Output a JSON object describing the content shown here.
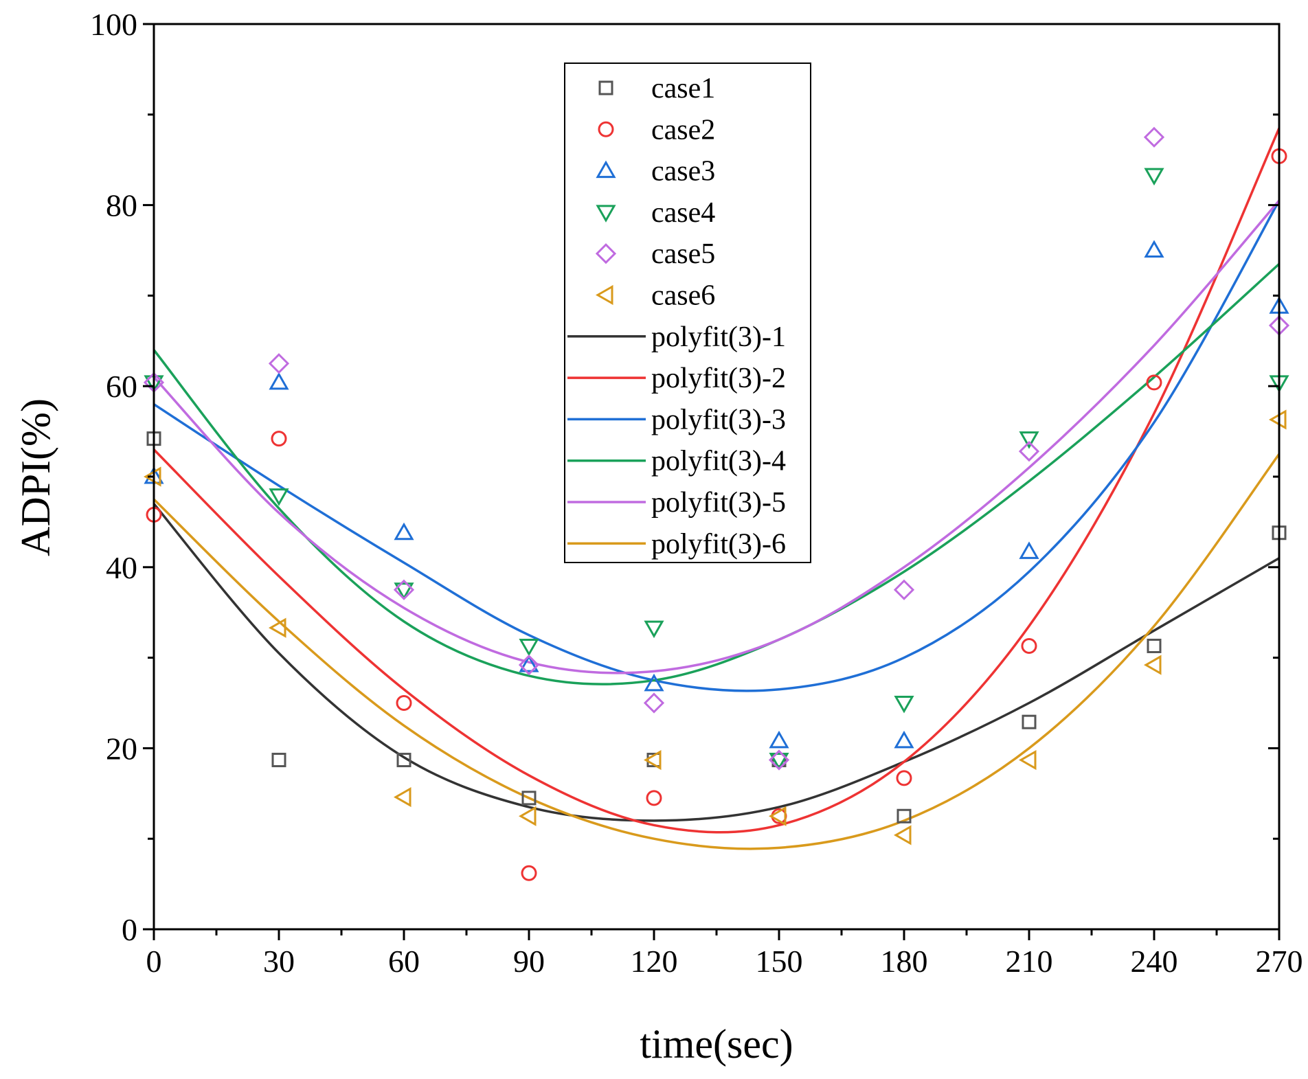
{
  "chart_data": {
    "type": "scatter",
    "title": "",
    "xlabel": "time(sec)",
    "ylabel": "ADPI(%)",
    "xlim": [
      0,
      270
    ],
    "ylim": [
      0,
      100
    ],
    "x_ticks": [
      0,
      30,
      60,
      90,
      120,
      150,
      180,
      210,
      240,
      270
    ],
    "x_tick_labels": [
      "0",
      "30",
      "60",
      "90",
      "120",
      "150",
      "180",
      "210",
      "240",
      "270"
    ],
    "y_ticks": [
      0,
      20,
      40,
      60,
      80,
      100
    ],
    "y_tick_labels": [
      "0",
      "20",
      "40",
      "60",
      "80",
      "100"
    ],
    "grid": false,
    "legend_position": "top-center",
    "x": [
      0,
      30,
      60,
      90,
      120,
      150,
      180,
      210,
      240,
      270
    ],
    "series": [
      {
        "name": "case1",
        "marker": "square",
        "color": "#555555",
        "values": [
          54.2,
          18.7,
          18.7,
          14.5,
          18.7,
          18.7,
          12.5,
          22.9,
          31.3,
          43.8
        ]
      },
      {
        "name": "case2",
        "marker": "circle",
        "color": "#ee3333",
        "values": [
          45.8,
          54.2,
          25.0,
          6.2,
          14.5,
          12.5,
          16.7,
          31.3,
          60.4,
          85.4
        ]
      },
      {
        "name": "case3",
        "marker": "triangle-up",
        "color": "#1f6fd6",
        "values": [
          50.0,
          60.4,
          43.8,
          29.2,
          27.1,
          20.8,
          20.8,
          41.7,
          75.0,
          68.8
        ]
      },
      {
        "name": "case4",
        "marker": "triangle-down",
        "color": "#1aa15a",
        "values": [
          60.4,
          47.9,
          37.5,
          31.3,
          33.3,
          18.7,
          25.0,
          54.2,
          83.3,
          60.4
        ]
      },
      {
        "name": "case5",
        "marker": "diamond",
        "color": "#c06be0",
        "values": [
          60.4,
          62.5,
          37.5,
          29.2,
          25.0,
          18.7,
          37.5,
          52.8,
          87.5,
          66.7
        ]
      },
      {
        "name": "case6",
        "marker": "triangle-left",
        "color": "#d99a1c",
        "values": [
          50.0,
          33.3,
          14.6,
          12.5,
          18.7,
          12.5,
          10.4,
          18.7,
          29.2,
          56.3
        ]
      }
    ],
    "fits": [
      {
        "name": "polyfit(3)-1",
        "color": "#333333",
        "x": [
          0,
          30,
          60,
          90,
          120,
          150,
          180,
          210,
          240,
          270
        ],
        "values": [
          47.0,
          30.5,
          19.0,
          13.5,
          12.0,
          13.5,
          18.5,
          25.0,
          33.0,
          41.0
        ]
      },
      {
        "name": "polyfit(3)-2",
        "color": "#ee3333",
        "x": [
          0,
          30,
          60,
          90,
          120,
          150,
          180,
          210,
          240,
          270
        ],
        "values": [
          53.0,
          39.0,
          26.5,
          17.0,
          11.5,
          11.5,
          18.5,
          33.5,
          57.0,
          88.5
        ]
      },
      {
        "name": "polyfit(3)-3",
        "color": "#1f6fd6",
        "x": [
          0,
          30,
          60,
          90,
          120,
          150,
          180,
          210,
          240,
          270
        ],
        "values": [
          58.0,
          49.0,
          40.5,
          32.5,
          27.5,
          26.5,
          30.0,
          39.5,
          56.0,
          80.5
        ]
      },
      {
        "name": "polyfit(3)-4",
        "color": "#1aa15a",
        "x": [
          0,
          30,
          60,
          90,
          120,
          150,
          180,
          210,
          240,
          270
        ],
        "values": [
          64.0,
          46.5,
          34.0,
          28.0,
          27.5,
          32.0,
          39.5,
          49.5,
          61.0,
          73.5
        ]
      },
      {
        "name": "polyfit(3)-5",
        "color": "#c06be0",
        "x": [
          0,
          30,
          60,
          90,
          120,
          150,
          180,
          210,
          240,
          270
        ],
        "values": [
          61.0,
          46.0,
          35.5,
          29.5,
          28.5,
          32.0,
          40.0,
          51.0,
          64.5,
          80.5
        ]
      },
      {
        "name": "polyfit(3)-6",
        "color": "#d99a1c",
        "x": [
          0,
          30,
          60,
          90,
          120,
          150,
          180,
          210,
          240,
          270
        ],
        "values": [
          47.5,
          34.0,
          22.5,
          14.5,
          10.0,
          9.0,
          12.0,
          20.0,
          33.5,
          52.5
        ]
      }
    ]
  }
}
